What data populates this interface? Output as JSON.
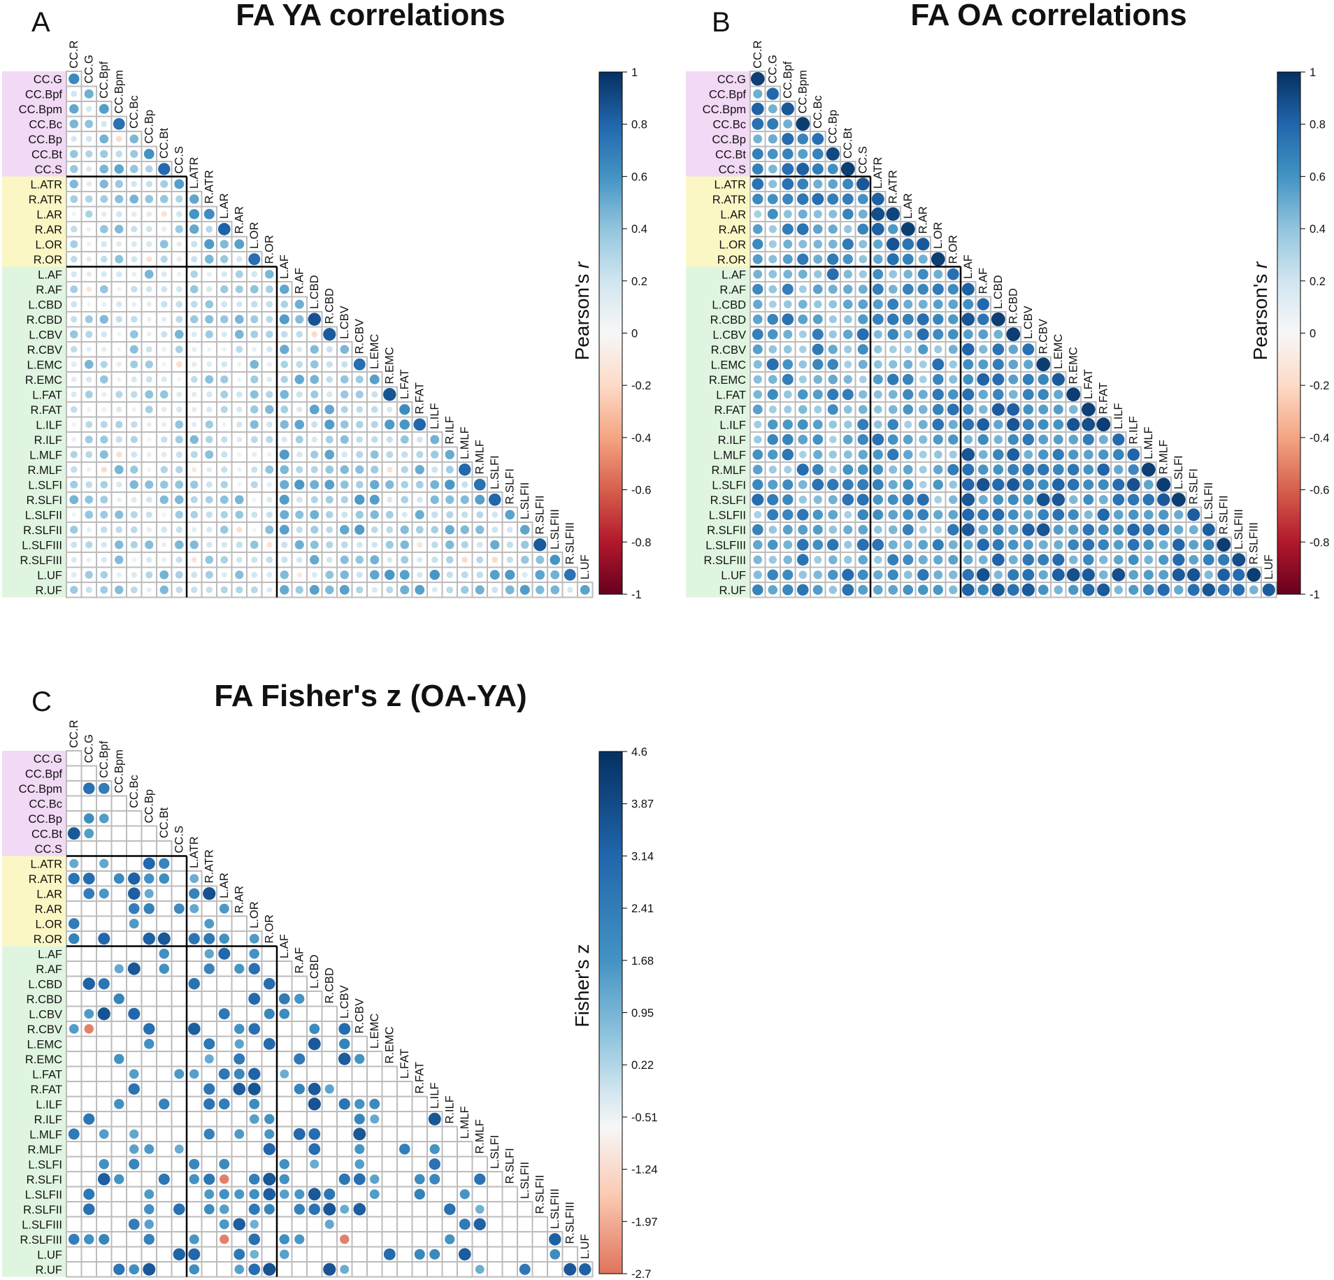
{
  "chart_data": [
    {
      "type": "heatmap",
      "panel": "A",
      "title": "FA YA correlations",
      "colorbar_title": "Pearson's ",
      "colorbar_title_italic": "r",
      "colorbar_ticks": [
        "1",
        "0.8",
        "0.6",
        "0.4",
        "0.2",
        "0",
        "-0.2",
        "-0.4",
        "-0.6",
        "-0.8",
        "-1"
      ],
      "value_range": [
        -1,
        1
      ],
      "color_low": "#67001f",
      "color_mid": "#f7f7f7",
      "color_high": "#053061",
      "layout": "lower-triangle correlation matrix, circle markers",
      "base_level": 0.25
    },
    {
      "type": "heatmap",
      "panel": "B",
      "title": "FA OA correlations",
      "colorbar_title": "Pearson's ",
      "colorbar_title_italic": "r",
      "colorbar_ticks": [
        "1",
        "0.8",
        "0.6",
        "0.4",
        "0.2",
        "0",
        "-0.2",
        "-0.4",
        "-0.6",
        "-0.8",
        "-1"
      ],
      "value_range": [
        -1,
        1
      ],
      "color_low": "#67001f",
      "color_mid": "#f7f7f7",
      "color_high": "#053061",
      "layout": "lower-triangle correlation matrix, circle markers",
      "base_level": 0.55
    },
    {
      "type": "heatmap",
      "panel": "C",
      "title": "FA Fisher's z (OA-YA)",
      "colorbar_title": "Fisher's z",
      "colorbar_title_italic": "",
      "colorbar_ticks": [
        "4.6",
        "3.87",
        "3.14",
        "2.41",
        "1.68",
        "0.95",
        "0.22",
        "-0.51",
        "-1.24",
        "-1.97",
        "-2.7"
      ],
      "value_range": [
        -2.7,
        4.6
      ],
      "color_low": "#e0735a",
      "color_mid": "#f7f7f7",
      "color_high": "#053061",
      "layout": "lower-triangle matrix, circles only for significant differences",
      "base_level": 0
    }
  ],
  "tracts": [
    "CC.R",
    "CC.G",
    "CC.Bpf",
    "CC.Bpm",
    "CC.Bc",
    "CC.Bp",
    "CC.Bt",
    "CC.S",
    "L.ATR",
    "R.ATR",
    "L.AR",
    "R.AR",
    "L.OR",
    "R.OR",
    "L.AF",
    "R.AF",
    "L.CBD",
    "R.CBD",
    "L.CBV",
    "R.CBV",
    "L.EMC",
    "R.EMC",
    "L.FAT",
    "R.FAT",
    "L.ILF",
    "R.ILF",
    "L.MLF",
    "R.MLF",
    "L.SLFI",
    "R.SLFI",
    "L.SLFII",
    "R.SLFII",
    "L.SLFIII",
    "R.SLFIII",
    "L.UF",
    "R.UF"
  ],
  "tract_groups": {
    "callosal": {
      "range": [
        0,
        7
      ],
      "color": "#f2d9f5"
    },
    "projection": {
      "range": [
        8,
        13
      ],
      "color": "#fbf7c4"
    },
    "association": {
      "range": [
        14,
        35
      ],
      "color": "#e0f5e0"
    }
  },
  "colors": {
    "grid_line": "#bcbcbc",
    "block_line": "#000000"
  }
}
